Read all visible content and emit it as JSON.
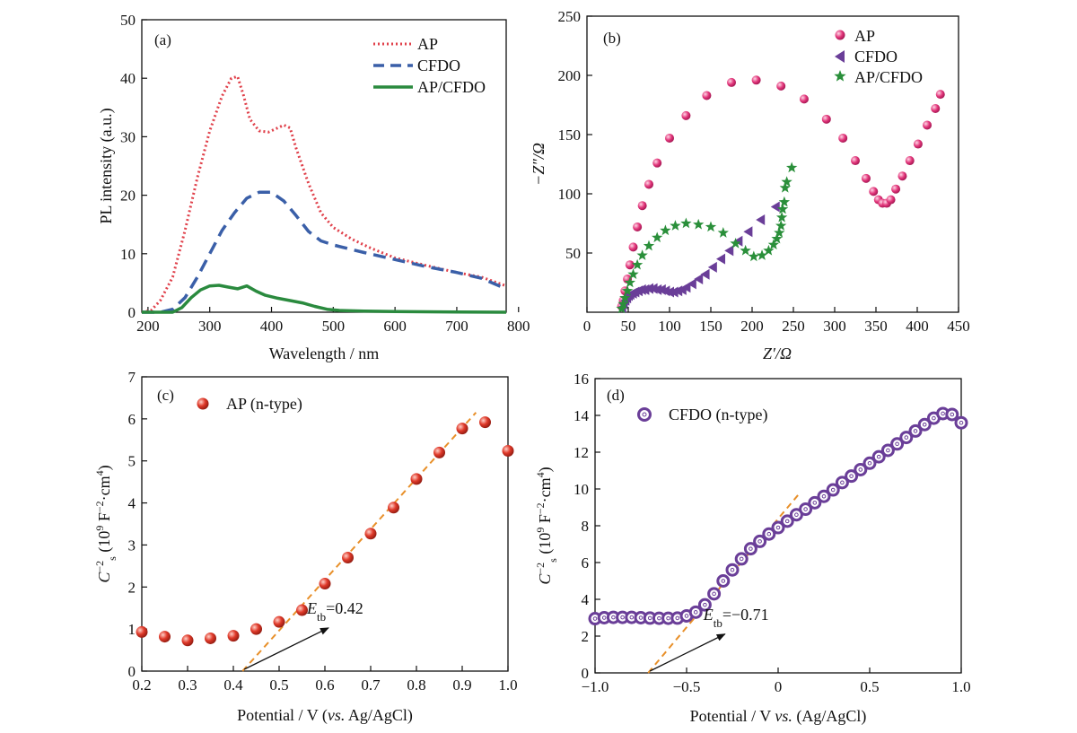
{
  "chart_data": [
    {
      "panel": "(a)",
      "type": "line",
      "xlabel": "Wavelength / nm",
      "ylabel": "PL intensity (a.u.)",
      "xlim": [
        190,
        780
      ],
      "ylim": [
        0,
        50
      ],
      "xticks": [
        200,
        300,
        400,
        500,
        600,
        700,
        800
      ],
      "yticks": [
        0,
        10,
        20,
        30,
        40,
        50
      ],
      "xtick_labels": [
        "200",
        "300",
        "400",
        "500",
        "600",
        "700",
        "800"
      ],
      "ytick_labels": [
        "0",
        "10",
        "20",
        "30",
        "40",
        "50"
      ],
      "legend_position": "top-right",
      "series": [
        {
          "name": "AP",
          "style": "dotted",
          "color": "#e0404a",
          "x": [
            190,
            205,
            220,
            240,
            260,
            280,
            300,
            320,
            335,
            345,
            355,
            365,
            380,
            395,
            410,
            420,
            430,
            440,
            460,
            480,
            500,
            530,
            560,
            600,
            650,
            700,
            740,
            780
          ],
          "y": [
            0,
            0.3,
            2,
            6,
            14,
            23,
            31,
            37,
            40,
            40.3,
            37,
            33,
            31,
            30.8,
            31.5,
            32,
            31.5,
            28,
            22,
            17,
            14.5,
            12.5,
            11,
            9.3,
            8,
            6.8,
            6,
            4.5
          ]
        },
        {
          "name": "CFDO",
          "style": "dashed",
          "color": "#3a5fa8",
          "x": [
            190,
            220,
            240,
            260,
            280,
            300,
            320,
            340,
            360,
            380,
            400,
            420,
            440,
            460,
            480,
            500,
            550,
            600,
            650,
            700,
            740,
            780
          ],
          "y": [
            0,
            0,
            0.5,
            2.5,
            6,
            10,
            14,
            17,
            19.5,
            20.5,
            20.5,
            19,
            16.5,
            13.8,
            12.2,
            11.5,
            10.2,
            9,
            7.8,
            6.8,
            5.8,
            4
          ]
        },
        {
          "name": "AP/CFDO",
          "style": "solid",
          "color": "#2a8a3e",
          "x": [
            190,
            240,
            255,
            270,
            285,
            300,
            315,
            330,
            345,
            360,
            375,
            390,
            410,
            430,
            450,
            470,
            490,
            510,
            550,
            600,
            700,
            780
          ],
          "y": [
            0,
            0,
            0.8,
            2.5,
            3.8,
            4.5,
            4.6,
            4.3,
            4,
            4.5,
            3.6,
            2.9,
            2.4,
            2,
            1.6,
            1,
            0.5,
            0.3,
            0.2,
            0.1,
            0.05,
            0
          ]
        }
      ]
    },
    {
      "panel": "(b)",
      "type": "scatter",
      "xlabel": "Z′/Ω",
      "ylabel": "−Z″/Ω",
      "xlim": [
        0,
        450
      ],
      "ylim": [
        0,
        250
      ],
      "xticks": [
        0,
        50,
        100,
        150,
        200,
        250,
        300,
        350,
        400,
        450
      ],
      "yticks": [
        50,
        100,
        150,
        200,
        250
      ],
      "xtick_labels": [
        "0",
        "50",
        "100",
        "150",
        "200",
        "250",
        "300",
        "350",
        "400",
        "450"
      ],
      "ytick_labels": [
        "50",
        "100",
        "150",
        "200",
        "250"
      ],
      "legend_position": "top-right",
      "series": [
        {
          "name": "AP",
          "marker": "circle",
          "color": "#e2357a",
          "x": [
            42,
            44,
            46,
            49,
            52,
            56,
            61,
            67,
            75,
            85,
            100,
            120,
            145,
            175,
            205,
            235,
            263,
            290,
            310,
            325,
            338,
            347,
            353,
            358,
            363,
            368,
            374,
            382,
            391,
            401,
            412,
            422,
            428
          ],
          "y": [
            5,
            10,
            18,
            28,
            40,
            55,
            72,
            90,
            108,
            126,
            147,
            166,
            183,
            194,
            196,
            191,
            180,
            163,
            147,
            128,
            113,
            102,
            95,
            92,
            92,
            95,
            104,
            115,
            128,
            142,
            158,
            172,
            184
          ]
        },
        {
          "name": "CFDO",
          "marker": "triangle-left",
          "color": "#6a3e98",
          "x": [
            42,
            44,
            46,
            48,
            50,
            52,
            55,
            58,
            62,
            66,
            70,
            75,
            80,
            85,
            90,
            95,
            100,
            105,
            110,
            115,
            120,
            127,
            135,
            143,
            152,
            162,
            172,
            183,
            195,
            210,
            228
          ],
          "y": [
            4,
            7,
            10,
            12,
            14,
            15,
            16,
            17,
            18,
            19,
            19,
            20,
            20,
            19,
            19,
            18,
            17,
            17,
            18,
            19,
            21,
            24,
            28,
            32,
            38,
            45,
            52,
            60,
            68,
            78,
            89
          ]
        },
        {
          "name": "AP/CFDO",
          "marker": "star",
          "color": "#2a8f3a",
          "x": [
            42,
            44,
            46,
            49,
            52,
            56,
            61,
            67,
            75,
            85,
            95,
            107,
            120,
            135,
            150,
            165,
            180,
            192,
            202,
            212,
            220,
            226,
            230,
            233,
            235,
            236,
            237,
            239,
            240,
            242,
            248
          ],
          "y": [
            3,
            7,
            12,
            18,
            25,
            32,
            40,
            48,
            56,
            63,
            69,
            73,
            75,
            74,
            72,
            67,
            58,
            52,
            47,
            48,
            52,
            57,
            62,
            67,
            73,
            80,
            87,
            93,
            105,
            110,
            122
          ]
        }
      ]
    },
    {
      "panel": "(c)",
      "type": "scatter",
      "xlabel": "Potential / V (vs. Ag/AgCl)",
      "ylabel": "C⁻²s (10⁹ F⁻²·cm⁴)",
      "xlim": [
        0.2,
        1.0
      ],
      "ylim": [
        0,
        7
      ],
      "xticks": [
        0.2,
        0.3,
        0.4,
        0.5,
        0.6,
        0.7,
        0.8,
        0.9,
        1.0
      ],
      "yticks": [
        0,
        1,
        2,
        3,
        4,
        5,
        6,
        7
      ],
      "xtick_labels": [
        "0.2",
        "0.3",
        "0.4",
        "0.5",
        "0.6",
        "0.7",
        "0.8",
        "0.9",
        "1.0"
      ],
      "ytick_labels": [
        "0",
        "1",
        "2",
        "3",
        "4",
        "5",
        "6",
        "7"
      ],
      "legend_position": "top-left",
      "series": [
        {
          "name": "AP (n-type)",
          "marker": "sphere",
          "color": "#d42a2a",
          "x": [
            0.2,
            0.25,
            0.3,
            0.35,
            0.4,
            0.45,
            0.5,
            0.55,
            0.6,
            0.65,
            0.7,
            0.75,
            0.8,
            0.85,
            0.9,
            0.95,
            1.0
          ],
          "y": [
            0.93,
            0.82,
            0.73,
            0.78,
            0.84,
            1.0,
            1.17,
            1.45,
            2.08,
            2.7,
            3.27,
            3.89,
            4.57,
            5.2,
            5.77,
            5.92,
            5.24
          ]
        }
      ],
      "fit_line": {
        "x": [
          0.42,
          0.93
        ],
        "y": [
          0,
          6.15
        ],
        "color": "#e8902a"
      },
      "annotation": {
        "main": "E",
        "sub": "tb",
        "text": "=0.42",
        "arrow_to": [
          0.42,
          0.0
        ],
        "label_at": [
          0.6,
          1.2
        ]
      }
    },
    {
      "panel": "(d)",
      "type": "scatter",
      "xlabel": "Potential / V vs. (Ag/AgCl)",
      "ylabel": "C⁻²s (10⁹ F⁻²·cm⁴)",
      "xlim": [
        -1.0,
        1.0
      ],
      "ylim": [
        0,
        16
      ],
      "xticks": [
        -1.0,
        -0.5,
        0,
        0.5,
        1.0
      ],
      "yticks": [
        0,
        2,
        4,
        6,
        8,
        10,
        12,
        14,
        16
      ],
      "xtick_labels": [
        "−1.0",
        "−0.5",
        "0",
        "0.5",
        "1.0"
      ],
      "ytick_labels": [
        "0",
        "2",
        "4",
        "6",
        "8",
        "10",
        "12",
        "14",
        "16"
      ],
      "legend_position": "top-left",
      "series": [
        {
          "name": "CFDO (n-type)",
          "marker": "ring",
          "color": "#6a3e98",
          "x": [
            -1.0,
            -0.95,
            -0.9,
            -0.85,
            -0.8,
            -0.75,
            -0.7,
            -0.65,
            -0.6,
            -0.55,
            -0.5,
            -0.45,
            -0.4,
            -0.35,
            -0.3,
            -0.25,
            -0.2,
            -0.15,
            -0.1,
            -0.05,
            0.0,
            0.05,
            0.1,
            0.15,
            0.2,
            0.25,
            0.3,
            0.35,
            0.4,
            0.45,
            0.5,
            0.55,
            0.6,
            0.65,
            0.7,
            0.75,
            0.8,
            0.85,
            0.9,
            0.95,
            1.0
          ],
          "y": [
            2.95,
            3.0,
            3.02,
            3.02,
            3.02,
            3.0,
            2.98,
            2.97,
            2.97,
            2.98,
            3.1,
            3.3,
            3.7,
            4.3,
            5.0,
            5.6,
            6.2,
            6.75,
            7.15,
            7.55,
            7.9,
            8.25,
            8.6,
            8.9,
            9.25,
            9.6,
            9.95,
            10.35,
            10.7,
            11.05,
            11.4,
            11.75,
            12.1,
            12.45,
            12.8,
            13.15,
            13.5,
            13.85,
            14.1,
            14.05,
            13.6
          ]
        }
      ],
      "fit_line": {
        "x": [
          -0.71,
          0.12
        ],
        "y": [
          0,
          9.8
        ],
        "color": "#e8902a"
      },
      "annotation": {
        "main": "E",
        "sub": "tb",
        "text": "=−0.71",
        "arrow_to": [
          -0.71,
          0.0
        ],
        "label_at": [
          -0.31,
          2.5
        ]
      }
    }
  ]
}
